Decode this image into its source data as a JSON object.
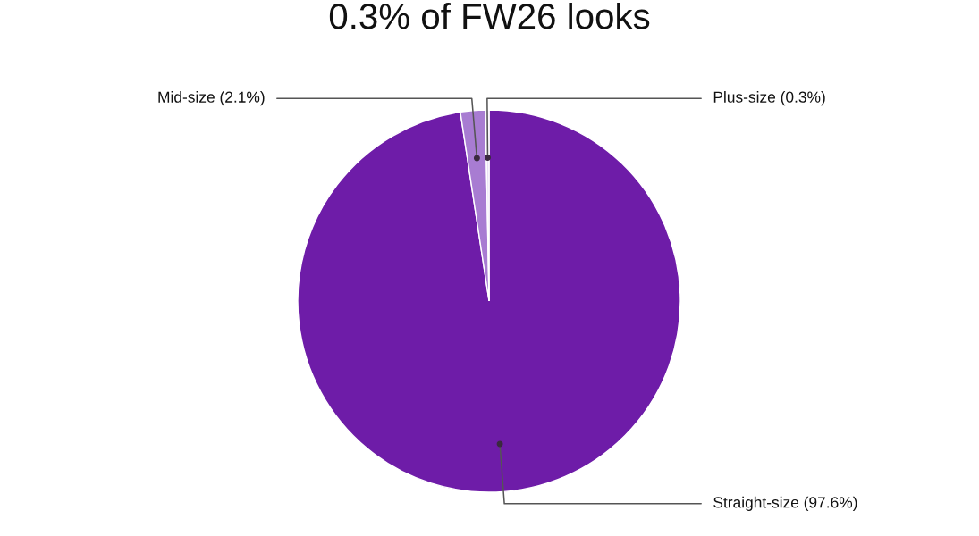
{
  "chart_data": {
    "type": "pie",
    "title": "0.3% of FW26 looks",
    "categories": [
      "Straight-size (97.6%)",
      "Mid-size (2.1%)",
      "Plus-size (0.3%)"
    ],
    "values": [
      97.6,
      2.1,
      0.3
    ],
    "colors": [
      "#6e1ca8",
      "#a87cd2",
      "#e9def4"
    ]
  }
}
